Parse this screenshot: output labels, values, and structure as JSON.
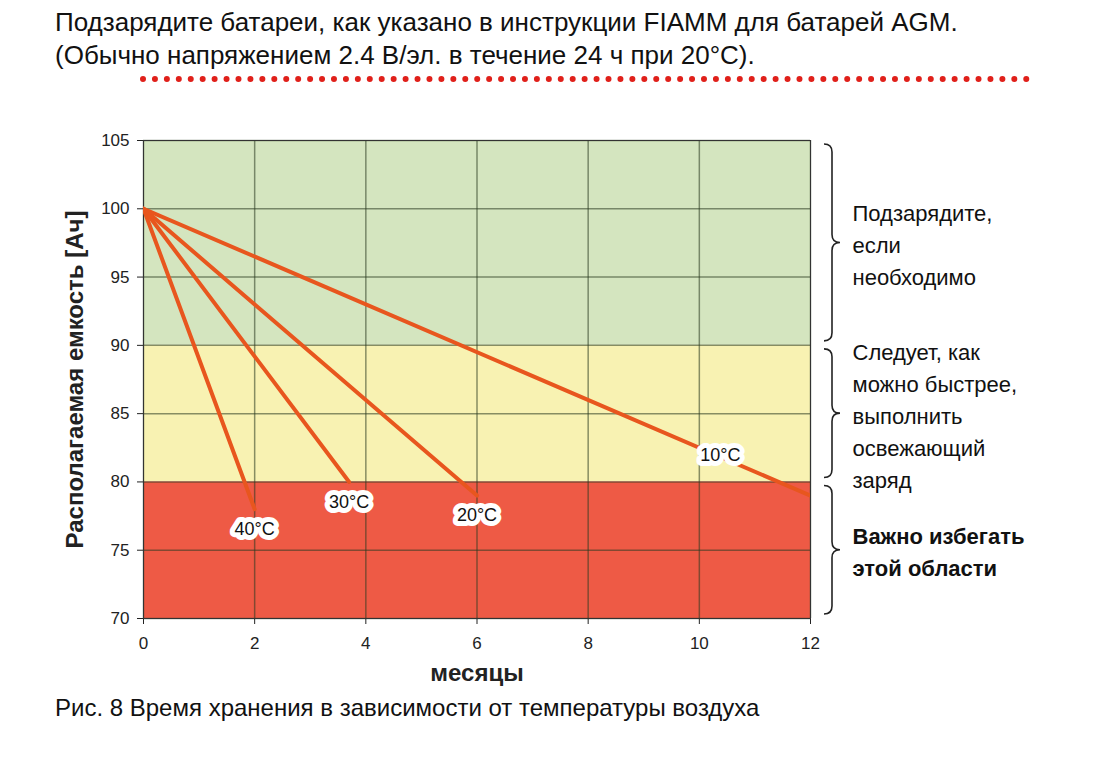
{
  "chart_data": {
    "type": "line",
    "title": "Подзарядите батареи, как указано в инструкции FIAMM для батарей AGM.  (Обычно напряжением 2.4 В/эл. в течение 24 ч при 20°C).",
    "caption": "Рис. 8 Время хранения в зависимости от температуры воздуха",
    "x_label": "месяцы",
    "y_label": "Располагаемая емкость [Ач]",
    "xlim": [
      0,
      12
    ],
    "xticks": [
      0,
      2,
      4,
      6,
      8,
      10,
      12
    ],
    "ylim": [
      70,
      105
    ],
    "yticks": [
      70,
      75,
      80,
      85,
      90,
      95,
      100,
      105
    ],
    "grid": true,
    "series": [
      {
        "name": "40°C",
        "color": "#e8561e",
        "x": [
          0,
          2
        ],
        "values": [
          100,
          78
        ]
      },
      {
        "name": "30°C",
        "color": "#e8561e",
        "x": [
          0,
          3.7
        ],
        "values": [
          100,
          80
        ]
      },
      {
        "name": "20°C",
        "color": "#e8561e",
        "x": [
          0,
          6
        ],
        "values": [
          100,
          79
        ]
      },
      {
        "name": "10°C",
        "color": "#e8561e",
        "x": [
          0,
          12
        ],
        "values": [
          100,
          79
        ]
      }
    ],
    "zones": [
      {
        "from": 90,
        "to": 105,
        "color": "#d4e5bf",
        "label": "Подзарядите,\nесли\nнеобходимо"
      },
      {
        "from": 80,
        "to": 90,
        "color": "#f8f2b2",
        "label": "Следует, как\nможно быстрее,\nвыполнить\nосвежающий\nзаряд"
      },
      {
        "from": 70,
        "to": 80,
        "color": "#ee5a45",
        "label": "Важно избегать\nэтой области"
      }
    ]
  }
}
